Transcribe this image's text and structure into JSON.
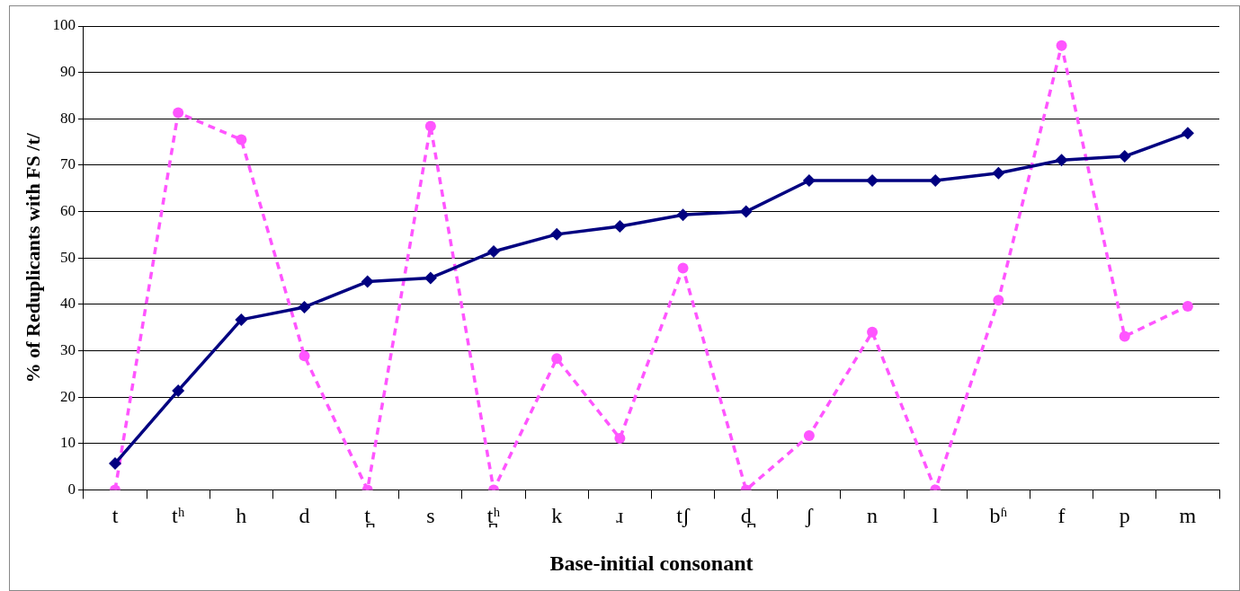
{
  "chart_data": {
    "type": "line",
    "xlabel": "Base-initial consonant",
    "ylabel": "% of Reduplicants with FS /t/",
    "categories": [
      "t",
      "tʰ",
      "h",
      "d",
      "t̪",
      "s",
      "t̪ʰ",
      "k",
      "ɹ",
      "tʃ",
      "d̪",
      "ʃ",
      "n",
      "l",
      "bʱ",
      "f",
      "p",
      "m"
    ],
    "series": [
      {
        "color": "#000080",
        "marker": "diamond",
        "line_style": "solid",
        "values": [
          5.7,
          21.4,
          36.7,
          39.4,
          44.9,
          45.7,
          51.4,
          55.1,
          56.8,
          59.3,
          60,
          66.7,
          66.7,
          66.7,
          68.3,
          71.1,
          71.9,
          76.9
        ]
      },
      {
        "color": "#ff55ff",
        "marker": "circle",
        "line_style": "dashed",
        "values": [
          0,
          81.3,
          75.5,
          28.9,
          0,
          78.4,
          0,
          28.3,
          11.1,
          47.8,
          0,
          11.7,
          34,
          0,
          40.9,
          95.8,
          33.1,
          39.6
        ]
      }
    ],
    "ylim": [
      0,
      100
    ],
    "yticks": [
      0,
      10,
      20,
      30,
      40,
      50,
      60,
      70,
      80,
      90,
      100
    ],
    "grid": "y",
    "legend": false
  }
}
